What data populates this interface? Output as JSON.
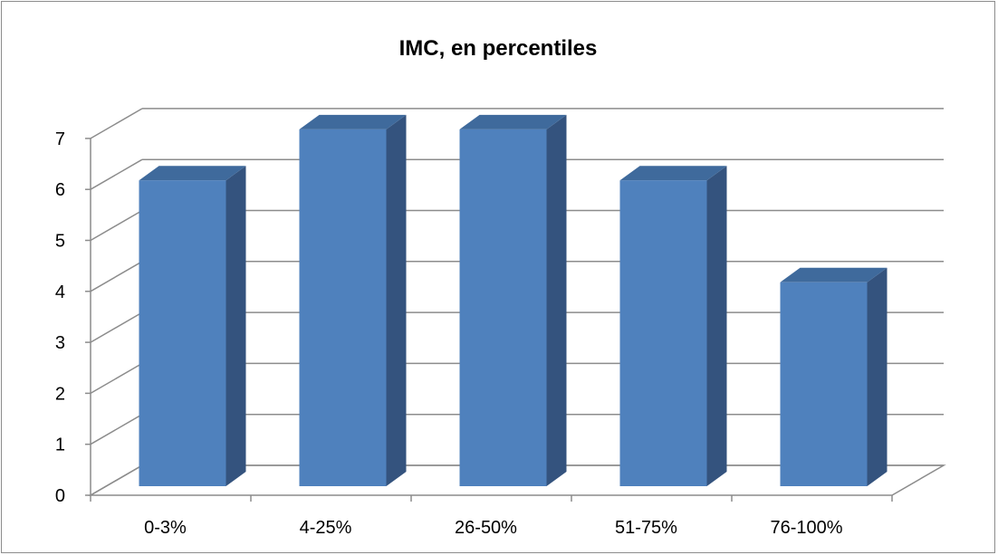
{
  "chart_data": {
    "type": "bar",
    "title": "IMC, en percentiles",
    "categories": [
      "0-3%",
      "4-25%",
      "26-50%",
      "51-75%",
      "76-100%"
    ],
    "values": [
      6,
      7,
      7,
      6,
      4
    ],
    "xlabel": "",
    "ylabel": "",
    "ylim": [
      0,
      7
    ],
    "yticks": [
      "0",
      "1",
      "2",
      "3",
      "4",
      "5",
      "6",
      "7"
    ],
    "grid": true,
    "legend": "none",
    "three_d": true,
    "colors": {
      "bar_front": "#4f81bd",
      "bar_top": "#3f6a9c",
      "bar_side": "#34537e",
      "gridline": "#8c8c8c",
      "frame_border": "#8c8c8c"
    }
  }
}
